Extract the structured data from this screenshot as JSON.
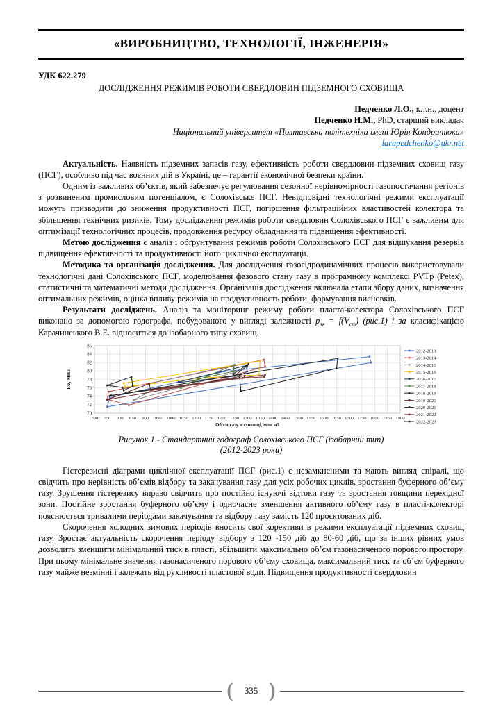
{
  "header_band": {
    "title": "«ВИРОБНИЦТВО, ТЕХНОЛОГІЇ, ІНЖЕНЕРІЯ»"
  },
  "article": {
    "udc": "УДК 622.279",
    "title": "ДОСЛІДЖЕННЯ РЕЖИМІВ РОБОТИ СВЕРДЛОВИН ПІДЗЕМНОГО СХОВИЩА",
    "author_lines": [
      {
        "segments": [
          {
            "t": "Педченко Л.О.,",
            "b": 1
          },
          {
            "t": " к.т.н., доцент"
          }
        ]
      },
      {
        "segments": [
          {
            "t": "Педченко Н.М.,",
            "b": 1
          },
          {
            "t": " PhD, старший викладач"
          }
        ]
      }
    ],
    "affiliation": "Національний університет «Полтавська політехніка імені Юрія Кондратюка»",
    "email": "larapedchenko@ukr.net"
  },
  "paragraphs_top": [
    {
      "segments": [
        {
          "t": "Актуальність.",
          "b": 1
        },
        {
          "t": " Наявність підземних запасів газу, ефективність роботи свердловин підземних сховищ газу (ПСГ), особливо під час воєнних дій в Україні, це – гарантії економічної безпеки країни."
        }
      ]
    },
    {
      "segments": [
        {
          "t": "Одним із важливих об’єктів, який забезпечує регулювання сезонної нерівномірності газопостачання регіонів з розвиненим промисловим потенціалом, є Солохівське ПСГ. Невідповідні технологічні режими експлуатації можуть призводити до зниження продуктивності ПСГ, погіршення фільтраційних властивостей колектора та збільшення технічних ризиків. Тому дослідження режимів роботи свердловин Солохівського ПСГ є важливим для оптимізації технологічних процесів, продовження ресурсу обладнання та підвищення ефективності."
        }
      ]
    },
    {
      "segments": [
        {
          "t": "Метою дослідження",
          "b": 1
        },
        {
          "t": " є аналіз і обґрунтування режимів роботи Солохівського ПСГ для відшукання резервів підвищення ефективності та продуктивності його циклічної експлуатації."
        }
      ]
    },
    {
      "segments": [
        {
          "t": "Методика та організація дослідження.",
          "b": 1
        },
        {
          "t": " Для дослідження газогідродинамічних процесів використовували технологічні дані Солохівського ПСГ, моделювання фазового стану газу в програмному комплексі PVTp (Petex),  статистичні та математичні методи дослідження. Організація дослідження включала етапи збору даних, визначення оптимальних режимів, оцінка впливу режимів на продуктивность роботи, формування висновків."
        }
      ]
    },
    {
      "segments": [
        {
          "t": "Результати досліджень.",
          "b": 1
        },
        {
          "t": " Аналіз та моніторинг режиму роботи пласта-колектора Солохівського ПСГ виконано за допомогою годографа, побудованого у вигляді залежності "
        },
        {
          "t": "p",
          "i": 1
        },
        {
          "t": "зв",
          "i": 1,
          "sub": 1
        },
        {
          "t": " = f(V",
          "i": 1
        },
        {
          "t": "ст",
          "i": 1,
          "sub": 1
        },
        {
          "t": ") (рис.1) і за ",
          "i": 1
        },
        {
          "t": "класифікацією Карачинського В.Е. відноситься до ізобарного типу сховищ."
        }
      ]
    }
  ],
  "figure": {
    "caption_line1": "Рисунок 1 - Стандартний годограф Солохівського ПСГ  (ізобарний тип)",
    "caption_line2": "(2012-2023 роки)"
  },
  "chart_data": {
    "type": "line",
    "title": "",
    "xlabel": "Об'єм газу в сховищі, млн.м3",
    "ylabel": "P/z, МПа",
    "xlim": [
      700,
      1900
    ],
    "xtick_step": 50,
    "ylim": [
      70,
      86
    ],
    "ytick_step": 2,
    "grid": true,
    "legend_position": "right",
    "note": "hysteresis loops (hodograph); points digitized approximately from the figure",
    "series": [
      {
        "name": "2012-2013",
        "color": "#4472C4",
        "points": [
          [
            750,
            71.5
          ],
          [
            1785,
            82.0
          ],
          [
            1780,
            83.4
          ],
          [
            1210,
            79.9
          ],
          [
            760,
            73.7
          ],
          [
            750,
            71.5
          ]
        ]
      },
      {
        "name": "2013-2014",
        "color": "#BE4B48",
        "points": [
          [
            835,
            71.9
          ],
          [
            1370,
            81.1
          ],
          [
            1365,
            82.7
          ],
          [
            755,
            75.1
          ],
          [
            750,
            73.3
          ],
          [
            835,
            71.9
          ]
        ]
      },
      {
        "name": "2014-2015",
        "color": "#8C8C8C",
        "points": [
          [
            855,
            73.1
          ],
          [
            1250,
            79.7
          ],
          [
            1245,
            81.4
          ],
          [
            915,
            77.0
          ],
          [
            920,
            75.3
          ],
          [
            855,
            73.1
          ]
        ]
      },
      {
        "name": "2015-2016",
        "color": "#FFC000",
        "points": [
          [
            815,
            77.1
          ],
          [
            1350,
            82.4
          ],
          [
            1345,
            79.1
          ],
          [
            1110,
            78.3
          ],
          [
            820,
            76.2
          ],
          [
            815,
            77.1
          ]
        ]
      },
      {
        "name": "2016-2017",
        "color": "#1F3864",
        "points": [
          [
            1030,
            77.4
          ],
          [
            1295,
            81.3
          ],
          [
            1300,
            79.9
          ],
          [
            1270,
            78.9
          ],
          [
            1035,
            77.3
          ],
          [
            1030,
            77.4
          ]
        ]
      },
      {
        "name": "2017-2018",
        "color": "#548235",
        "points": [
          [
            1035,
            76.1
          ],
          [
            1250,
            81.5
          ],
          [
            1245,
            79.9
          ],
          [
            1105,
            78.1
          ],
          [
            1040,
            76.0
          ],
          [
            1035,
            76.1
          ]
        ]
      },
      {
        "name": "2018-2019",
        "color": "#262626",
        "points": [
          [
            750,
            76.6
          ],
          [
            845,
            78.6
          ],
          [
            850,
            76.4
          ],
          [
            815,
            75.4
          ],
          [
            810,
            76.1
          ],
          [
            750,
            76.6
          ]
        ]
      },
      {
        "name": "2019-2020",
        "color": "#632423",
        "points": [
          [
            750,
            73.2
          ],
          [
            1290,
            78.9
          ],
          [
            1285,
            78.4
          ],
          [
            920,
            75.6
          ],
          [
            915,
            77.0
          ],
          [
            750,
            73.2
          ]
        ]
      },
      {
        "name": "2020-2021",
        "color": "#1A1A1A",
        "points": [
          [
            760,
            74.1
          ],
          [
            1655,
            83.0
          ],
          [
            1650,
            80.6
          ],
          [
            1275,
            75.2
          ],
          [
            1270,
            78.4
          ],
          [
            765,
            74.2
          ],
          [
            760,
            74.1
          ]
        ]
      },
      {
        "name": "2021-2022",
        "color": "#843C3C",
        "points": [
          [
            920,
            75.5
          ],
          [
            1370,
            79.1
          ],
          [
            1365,
            78.6
          ],
          [
            1280,
            78.3
          ],
          [
            925,
            75.4
          ],
          [
            920,
            75.5
          ]
        ]
      },
      {
        "name": "2022-2023",
        "color": "#2B2B2B",
        "points": [
          [
            1245,
            79.3
          ],
          [
            1305,
            81.7
          ],
          [
            1300,
            81.3
          ],
          [
            1250,
            78.9
          ],
          [
            1245,
            79.3
          ]
        ]
      }
    ]
  },
  "paragraphs_bottom": [
    {
      "segments": [
        {
          "t": "Гістерезисні діаграми циклічної експлуатації ПСГ  (рис.1) є незамкненими та мають вигляд спіралі, що свідчить про нерівність об’ємів відбору та закачування газу для усіх робочих циклів, зростання буферного об’єму газу. Зрушення гістерезису вправо свідчить про постійно існуючі відтоки газу та зростання товщини перехідної зони. Постійне зростання буферного об’єму і одночасне зменшення активного об’єму газу в пласті-колекторі пояснюється тривалими періодами закачування та відбору газу замість 120 проєктованих діб."
        }
      ]
    },
    {
      "segments": [
        {
          "t": "Скорочення холодних зимових періодів вносить свої корективи в режими експлуатації підземних сховищ газу. Зростає актуальність скорочення періоду відбору з 120 -150 діб до 80-60 діб, що за інших рівних умов дозволить  зменшити мінімальний тиск в пласті,  збільшити максимально об’єм газонасиченого порового простору. При цьому мінімальне значення газонасиченого порового об’єму сховища, максимальний тиск та об’єм буферного газу майже незмінні і залежать від рухливості пластової води. Підвищення продуктивності свердловин"
        }
      ]
    }
  ],
  "footer": {
    "page_number": "335"
  }
}
